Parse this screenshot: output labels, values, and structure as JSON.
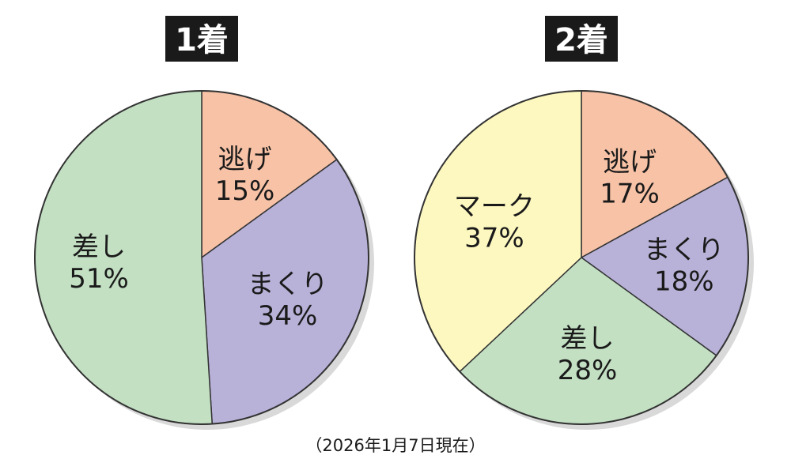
{
  "chart_data": [
    {
      "type": "pie",
      "title": "1着",
      "slices": [
        {
          "label": "逃げ",
          "value": 15,
          "value_label": "15%",
          "color": "#f7c2a6"
        },
        {
          "label": "まくり",
          "value": 34,
          "value_label": "34%",
          "color": "#b8b1d8"
        },
        {
          "label": "差し",
          "value": 51,
          "value_label": "51%",
          "color": "#c3e0c3"
        }
      ]
    },
    {
      "type": "pie",
      "title": "2着",
      "slices": [
        {
          "label": "逃げ",
          "value": 17,
          "value_label": "17%",
          "color": "#f7c2a6"
        },
        {
          "label": "まくり",
          "value": 18,
          "value_label": "18%",
          "color": "#b8b1d8"
        },
        {
          "label": "差し",
          "value": 28,
          "value_label": "28%",
          "color": "#c3e0c3"
        },
        {
          "label": "マーク",
          "value": 37,
          "value_label": "37%",
          "color": "#fdf8c0"
        }
      ]
    }
  ],
  "note": "（2026年1月7日現在）"
}
